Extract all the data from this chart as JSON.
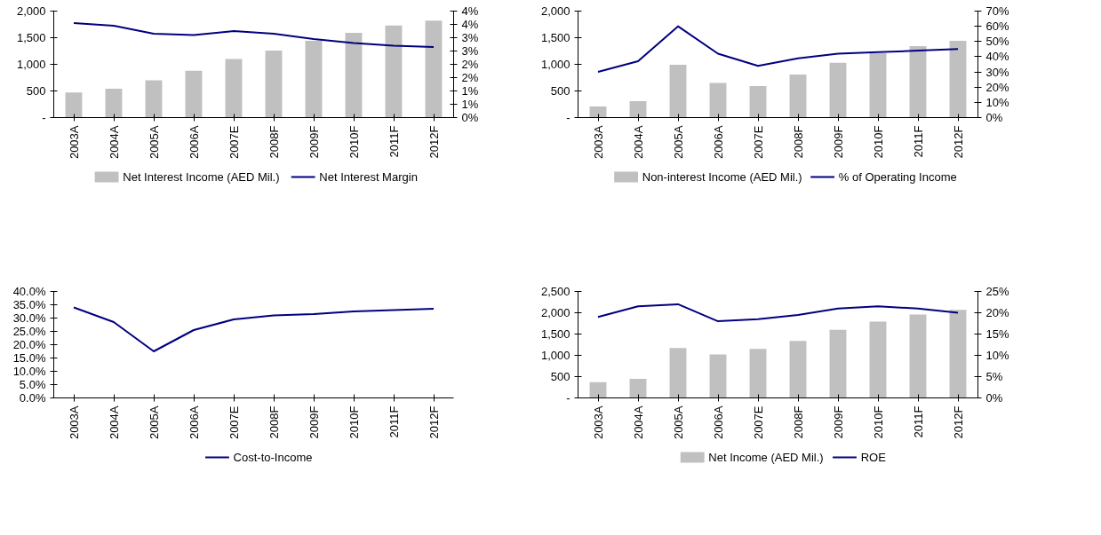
{
  "chart_data": [
    {
      "type": "bar",
      "categories": [
        "2003A",
        "2004A",
        "2005A",
        "2006A",
        "2007E",
        "2008F",
        "2009F",
        "2010F",
        "2011F",
        "2012F"
      ],
      "series": [
        {
          "name": "Net Interest Income (AED Mil.)",
          "color": "#c0c0c0",
          "values": [
            470,
            540,
            700,
            880,
            1100,
            1260,
            1440,
            1590,
            1730,
            1820
          ]
        },
        {
          "name": "Net Interest Margin",
          "type": "line",
          "axis": "y2",
          "color": "#000080",
          "values": [
            3.55,
            3.45,
            3.15,
            3.1,
            3.25,
            3.15,
            2.95,
            2.8,
            2.7,
            2.65
          ]
        }
      ],
      "ylim": [
        0,
        2000
      ],
      "yticks": [
        {
          "value": 0,
          "label": "-"
        },
        500,
        {
          "value": 1000,
          "label": "1,000"
        },
        {
          "value": 1500,
          "label": "1,500"
        },
        {
          "value": 2000,
          "label": "2,000"
        }
      ],
      "y2lim": [
        0,
        4
      ],
      "y2ticks": [
        {
          "value": 0,
          "label": "0%"
        },
        {
          "value": 0.5,
          "label": "1%"
        },
        {
          "value": 1,
          "label": "1%"
        },
        {
          "value": 1.5,
          "label": "2%"
        },
        {
          "value": 2,
          "label": "2%"
        },
        {
          "value": 2.5,
          "label": "3%"
        },
        {
          "value": 3,
          "label": "3%"
        },
        {
          "value": 3.5,
          "label": "4%"
        },
        {
          "value": 4,
          "label": "4%"
        }
      ],
      "grid": false,
      "legend": "bottom"
    },
    {
      "type": "bar",
      "categories": [
        "2003A",
        "2004A",
        "2005A",
        "2006A",
        "2007E",
        "2008F",
        "2009F",
        "2010F",
        "2011F",
        "2012F"
      ],
      "series": [
        {
          "name": "Non-interest Income (AED Mil.)",
          "color": "#c0c0c0",
          "values": [
            210,
            310,
            990,
            650,
            590,
            810,
            1030,
            1210,
            1340,
            1440
          ]
        },
        {
          "name": "% of Operating Income",
          "type": "line",
          "axis": "y2",
          "color": "#000080",
          "values": [
            30,
            37,
            60,
            42,
            34,
            39,
            42,
            43,
            44,
            45
          ]
        }
      ],
      "ylim": [
        0,
        2000
      ],
      "yticks": [
        {
          "value": 0,
          "label": "-"
        },
        500,
        {
          "value": 1000,
          "label": "1,000"
        },
        {
          "value": 1500,
          "label": "1,500"
        },
        {
          "value": 2000,
          "label": "2,000"
        }
      ],
      "y2lim": [
        0,
        70
      ],
      "y2ticks": [
        {
          "value": 0,
          "label": "0%"
        },
        {
          "value": 10,
          "label": "10%"
        },
        {
          "value": 20,
          "label": "20%"
        },
        {
          "value": 30,
          "label": "30%"
        },
        {
          "value": 40,
          "label": "40%"
        },
        {
          "value": 50,
          "label": "50%"
        },
        {
          "value": 60,
          "label": "60%"
        },
        {
          "value": 70,
          "label": "70%"
        }
      ],
      "grid": false,
      "legend": "bottom"
    },
    {
      "type": "line",
      "categories": [
        "2003A",
        "2004A",
        "2005A",
        "2006A",
        "2007E",
        "2008F",
        "2009F",
        "2010F",
        "2011F",
        "2012F"
      ],
      "series": [
        {
          "name": "Cost-to-Income",
          "color": "#000080",
          "values": [
            34,
            28.5,
            17.5,
            25.5,
            29.5,
            31,
            31.5,
            32.5,
            33,
            33.5
          ]
        }
      ],
      "ylim": [
        0,
        40
      ],
      "yticks": [
        {
          "value": 0,
          "label": "0.0%"
        },
        {
          "value": 5,
          "label": "5.0%"
        },
        {
          "value": 10,
          "label": "10.0%"
        },
        {
          "value": 15,
          "label": "15.0%"
        },
        {
          "value": 20,
          "label": "20.0%"
        },
        {
          "value": 25,
          "label": "25.0%"
        },
        {
          "value": 30,
          "label": "30.0%"
        },
        {
          "value": 35,
          "label": "35.0%"
        },
        {
          "value": 40,
          "label": "40.0%"
        }
      ],
      "grid": false,
      "legend": "bottom"
    },
    {
      "type": "bar",
      "categories": [
        "2003A",
        "2004A",
        "2005A",
        "2006A",
        "2007E",
        "2008F",
        "2009F",
        "2010F",
        "2011F",
        "2012F"
      ],
      "series": [
        {
          "name": "Net Income (AED Mil.)",
          "color": "#c0c0c0",
          "values": [
            370,
            450,
            1170,
            1020,
            1150,
            1340,
            1600,
            1790,
            1960,
            2070
          ]
        },
        {
          "name": "ROE",
          "type": "line",
          "axis": "y2",
          "color": "#000080",
          "values": [
            19,
            21.5,
            22,
            18,
            18.5,
            19.5,
            21,
            21.5,
            21,
            20
          ]
        }
      ],
      "ylim": [
        0,
        2500
      ],
      "yticks": [
        {
          "value": 0,
          "label": "-"
        },
        500,
        {
          "value": 1000,
          "label": "1,000"
        },
        {
          "value": 1500,
          "label": "1,500"
        },
        {
          "value": 2000,
          "label": "2,000"
        },
        {
          "value": 2500,
          "label": "2,500"
        }
      ],
      "y2lim": [
        0,
        25
      ],
      "y2ticks": [
        {
          "value": 0,
          "label": "0%"
        },
        {
          "value": 5,
          "label": "5%"
        },
        {
          "value": 10,
          "label": "10%"
        },
        {
          "value": 15,
          "label": "15%"
        },
        {
          "value": 20,
          "label": "20%"
        },
        {
          "value": 25,
          "label": "25%"
        }
      ],
      "grid": false,
      "legend": "bottom"
    }
  ]
}
